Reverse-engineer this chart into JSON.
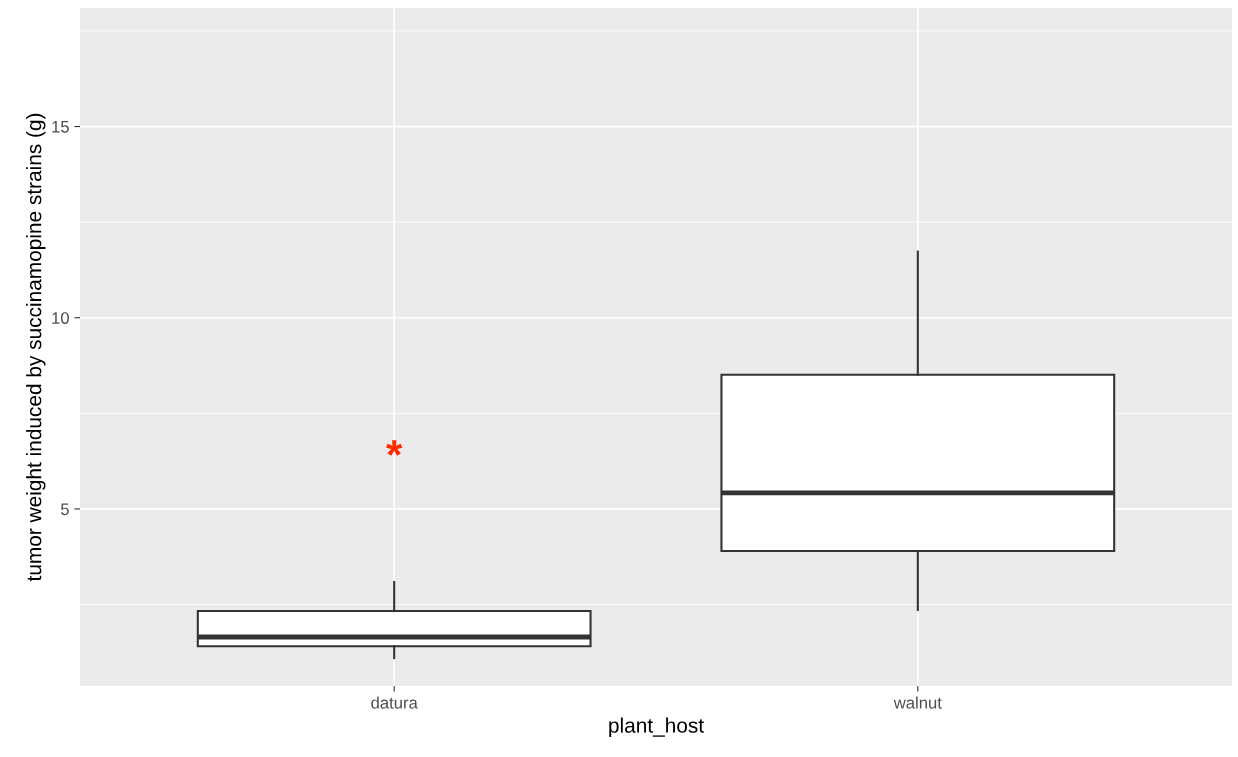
{
  "chart_data": {
    "type": "box",
    "xlabel": "plant_host",
    "ylabel": "tumor weight induced by succinamopine strains (g)",
    "categories": [
      "datura",
      "walnut"
    ],
    "boxes": [
      {
        "low": 1.1,
        "q1": 1.41,
        "median": 1.65,
        "q3": 2.33,
        "high": 3.09
      },
      {
        "low": 2.36,
        "q1": 3.9,
        "median": 5.42,
        "q3": 8.51,
        "high": 11.73
      }
    ],
    "annotations": [
      "*"
    ],
    "ylim": [
      0.37,
      18.1
    ],
    "yticks": [
      5,
      10,
      15
    ],
    "grid": true
  }
}
